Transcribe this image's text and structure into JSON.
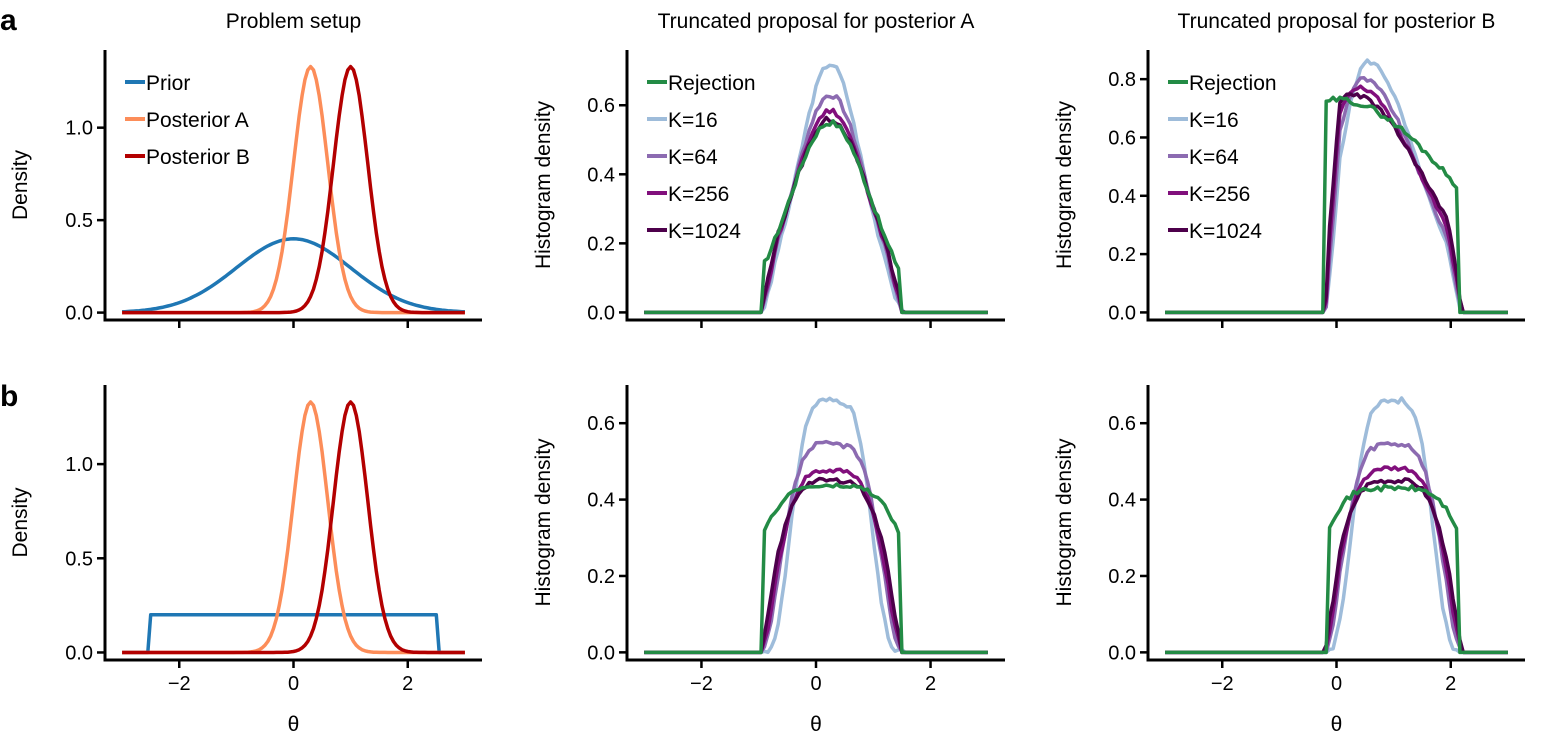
{
  "panel_letters": [
    "a",
    "b"
  ],
  "colors": {
    "prior": "#1f77b4",
    "posterior_a": "#fc8d59",
    "posterior_b": "#b30000",
    "rejection": "#238b45",
    "k16": "#9ebcda",
    "k64": "#8c6bb1",
    "k256": "#810f7c",
    "k1024": "#4d004b"
  },
  "chart_data": [
    {
      "id": "a-setup",
      "type": "line",
      "title": "Problem setup",
      "xlabel": "",
      "ylabel": "Density",
      "xlim": [
        -3.3,
        3.3
      ],
      "ylim": [
        -0.04,
        1.42
      ],
      "xticks": [
        -2,
        0,
        2
      ],
      "yticks": [
        0.0,
        0.5,
        1.0
      ],
      "show_xticklabels": false,
      "legend_placement": "top-left",
      "series": [
        {
          "name": "Prior",
          "color": "prior",
          "kind": "gauss",
          "mu": 0.0,
          "sigma": 1.0,
          "amp": 0.399,
          "x0": -3,
          "x1": 3
        },
        {
          "name": "Posterior A",
          "color": "posterior_a",
          "kind": "gauss",
          "mu": 0.3,
          "sigma": 0.3,
          "amp": 1.33,
          "x0": -3,
          "x1": 3
        },
        {
          "name": "Posterior B",
          "color": "posterior_b",
          "kind": "gauss",
          "mu": 1.0,
          "sigma": 0.3,
          "amp": 1.33,
          "x0": -3,
          "x1": 3
        }
      ]
    },
    {
      "id": "a-postA",
      "type": "line",
      "title": "Truncated proposal for posterior A",
      "xlabel": "",
      "ylabel": "Histogram density",
      "xlim": [
        -3.3,
        3.3
      ],
      "ylim": [
        -0.022,
        0.76
      ],
      "xticks": [
        -2,
        0,
        2
      ],
      "yticks": [
        0.0,
        0.2,
        0.4,
        0.6
      ],
      "show_xticklabels": false,
      "legend_placement": "top-left",
      "series": [
        {
          "name": "K=16",
          "color": "k16",
          "kind": "hist",
          "x0": -3,
          "x1": 3,
          "a": -0.95,
          "b": 1.5,
          "c": 0.25,
          "width": 0.55,
          "peak": 0.72,
          "edge": 0.12,
          "noise": 0.008,
          "seed": 3
        },
        {
          "name": "K=64",
          "color": "k64",
          "kind": "hist",
          "x0": -3,
          "x1": 3,
          "a": -0.95,
          "b": 1.5,
          "c": 0.25,
          "width": 0.62,
          "peak": 0.63,
          "edge": 0.2,
          "noise": 0.008,
          "seed": 7
        },
        {
          "name": "K=256",
          "color": "k256",
          "kind": "hist",
          "x0": -3,
          "x1": 3,
          "a": -0.95,
          "b": 1.5,
          "c": 0.25,
          "width": 0.65,
          "peak": 0.585,
          "edge": 0.25,
          "noise": 0.008,
          "seed": 11
        },
        {
          "name": "K=1024",
          "color": "k1024",
          "kind": "hist",
          "x0": -3,
          "x1": 3,
          "a": -0.95,
          "b": 1.5,
          "c": 0.25,
          "width": 0.68,
          "peak": 0.56,
          "edge": 0.3,
          "noise": 0.008,
          "seed": 13
        },
        {
          "name": "Rejection",
          "color": "rejection",
          "kind": "hist",
          "x0": -3,
          "x1": 3,
          "a": -0.9,
          "b": 1.45,
          "c": 0.25,
          "width": 0.7,
          "peak": 0.55,
          "edge": 0.38,
          "noise": 0.008,
          "seed": 17,
          "hard": true
        }
      ],
      "legend_order": [
        "Rejection",
        "K=16",
        "K=64",
        "K=256",
        "K=1024"
      ]
    },
    {
      "id": "a-postB",
      "type": "line",
      "title": "Truncated proposal for posterior B",
      "xlabel": "",
      "ylabel": "Histogram density",
      "xlim": [
        -3.3,
        3.3
      ],
      "ylim": [
        -0.026,
        0.9
      ],
      "xticks": [
        -2,
        0,
        2
      ],
      "yticks": [
        0.0,
        0.2,
        0.4,
        0.6,
        0.8
      ],
      "show_xticklabels": false,
      "legend_placement": "top-left",
      "series": [
        {
          "name": "K=16",
          "color": "k16",
          "kind": "hist",
          "x0": -3,
          "x1": 3,
          "a": -0.2,
          "b": 2.2,
          "c": 0.55,
          "width": 0.5,
          "peak": 0.86,
          "edge": 0.05,
          "noise": 0.008,
          "seed": 5,
          "skew": 0.7
        },
        {
          "name": "K=64",
          "color": "k64",
          "kind": "hist",
          "x0": -3,
          "x1": 3,
          "a": -0.2,
          "b": 2.2,
          "c": 0.45,
          "width": 0.55,
          "peak": 0.8,
          "edge": 0.1,
          "noise": 0.008,
          "seed": 9,
          "skew": 0.8
        },
        {
          "name": "K=256",
          "color": "k256",
          "kind": "hist",
          "x0": -3,
          "x1": 3,
          "a": -0.2,
          "b": 2.2,
          "c": 0.35,
          "width": 0.6,
          "peak": 0.77,
          "edge": 0.15,
          "noise": 0.008,
          "seed": 19,
          "skew": 0.9
        },
        {
          "name": "K=1024",
          "color": "k1024",
          "kind": "hist",
          "x0": -3,
          "x1": 3,
          "a": -0.2,
          "b": 2.2,
          "c": 0.25,
          "width": 0.65,
          "peak": 0.75,
          "edge": 0.2,
          "noise": 0.008,
          "seed": 23,
          "skew": 1.0
        },
        {
          "name": "Rejection",
          "color": "rejection",
          "kind": "hist",
          "x0": -3,
          "x1": 3,
          "a": -0.2,
          "b": 2.15,
          "c": 0.0,
          "width": 0.9,
          "peak": 0.73,
          "edge": 0.6,
          "noise": 0.01,
          "seed": 29,
          "hard": true,
          "skew": 1.3
        }
      ],
      "legend_order": [
        "Rejection",
        "K=16",
        "K=64",
        "K=256",
        "K=1024"
      ]
    },
    {
      "id": "b-setup",
      "type": "line",
      "title": "",
      "xlabel": "θ",
      "ylabel": "Density",
      "xlim": [
        -3.3,
        3.3
      ],
      "ylim": [
        -0.04,
        1.42
      ],
      "xticks": [
        -2,
        0,
        2
      ],
      "yticks": [
        0.0,
        0.5,
        1.0
      ],
      "show_xticklabels": true,
      "series": [
        {
          "name": "Prior",
          "color": "prior",
          "kind": "box",
          "lo": -2.5,
          "hi": 2.5,
          "height": 0.2,
          "x0": -3,
          "x1": 3
        },
        {
          "name": "Posterior A",
          "color": "posterior_a",
          "kind": "gauss",
          "mu": 0.3,
          "sigma": 0.3,
          "amp": 1.33,
          "x0": -3,
          "x1": 3
        },
        {
          "name": "Posterior B",
          "color": "posterior_b",
          "kind": "gauss",
          "mu": 1.0,
          "sigma": 0.3,
          "amp": 1.33,
          "x0": -3,
          "x1": 3
        }
      ]
    },
    {
      "id": "b-postA",
      "type": "line",
      "title": "",
      "xlabel": "θ",
      "ylabel": "Histogram density",
      "xlim": [
        -3.3,
        3.3
      ],
      "ylim": [
        -0.02,
        0.7
      ],
      "xticks": [
        -2,
        0,
        2
      ],
      "yticks": [
        0.0,
        0.2,
        0.4,
        0.6
      ],
      "show_xticklabels": true,
      "series": [
        {
          "name": "K=16",
          "color": "k16",
          "kind": "hist",
          "x0": -3,
          "x1": 3,
          "a": -0.95,
          "b": 1.5,
          "c": 0.27,
          "width": 0.5,
          "peak": 0.66,
          "edge": 0.12,
          "noise": 0.008,
          "seed": 31,
          "flat": true
        },
        {
          "name": "K=64",
          "color": "k64",
          "kind": "hist",
          "x0": -3,
          "x1": 3,
          "a": -0.95,
          "b": 1.5,
          "c": 0.27,
          "width": 0.6,
          "peak": 0.545,
          "edge": 0.2,
          "noise": 0.008,
          "seed": 37,
          "flat": true
        },
        {
          "name": "K=256",
          "color": "k256",
          "kind": "hist",
          "x0": -3,
          "x1": 3,
          "a": -0.95,
          "b": 1.5,
          "c": 0.27,
          "width": 0.65,
          "peak": 0.475,
          "edge": 0.28,
          "noise": 0.006,
          "seed": 41,
          "flat": true
        },
        {
          "name": "K=1024",
          "color": "k1024",
          "kind": "hist",
          "x0": -3,
          "x1": 3,
          "a": -0.95,
          "b": 1.5,
          "c": 0.27,
          "width": 0.7,
          "peak": 0.45,
          "edge": 0.36,
          "noise": 0.006,
          "seed": 43,
          "flat": true
        },
        {
          "name": "Rejection",
          "color": "rejection",
          "kind": "hist",
          "x0": -3,
          "x1": 3,
          "a": -0.9,
          "b": 1.45,
          "c": 0.27,
          "width": 1.0,
          "peak": 0.435,
          "edge": 0.42,
          "noise": 0.006,
          "seed": 47,
          "hard": true,
          "flat": true
        }
      ]
    },
    {
      "id": "b-postB",
      "type": "line",
      "title": "",
      "xlabel": "θ",
      "ylabel": "Histogram density",
      "xlim": [
        -3.3,
        3.3
      ],
      "ylim": [
        -0.02,
        0.7
      ],
      "xticks": [
        -2,
        0,
        2
      ],
      "yticks": [
        0.0,
        0.2,
        0.4,
        0.6
      ],
      "show_xticklabels": true,
      "series": [
        {
          "name": "K=16",
          "color": "k16",
          "kind": "hist",
          "x0": -3,
          "x1": 3,
          "a": -0.2,
          "b": 2.2,
          "c": 0.98,
          "width": 0.5,
          "peak": 0.66,
          "edge": 0.12,
          "noise": 0.008,
          "seed": 53,
          "flat": true
        },
        {
          "name": "K=64",
          "color": "k64",
          "kind": "hist",
          "x0": -3,
          "x1": 3,
          "a": -0.2,
          "b": 2.2,
          "c": 0.98,
          "width": 0.6,
          "peak": 0.545,
          "edge": 0.2,
          "noise": 0.008,
          "seed": 59,
          "flat": true
        },
        {
          "name": "K=256",
          "color": "k256",
          "kind": "hist",
          "x0": -3,
          "x1": 3,
          "a": -0.2,
          "b": 2.2,
          "c": 0.98,
          "width": 0.65,
          "peak": 0.48,
          "edge": 0.28,
          "noise": 0.006,
          "seed": 61,
          "flat": true
        },
        {
          "name": "K=1024",
          "color": "k1024",
          "kind": "hist",
          "x0": -3,
          "x1": 3,
          "a": -0.2,
          "b": 2.2,
          "c": 0.98,
          "width": 0.7,
          "peak": 0.45,
          "edge": 0.36,
          "noise": 0.006,
          "seed": 67,
          "flat": true
        },
        {
          "name": "Rejection",
          "color": "rejection",
          "kind": "hist",
          "x0": -3,
          "x1": 3,
          "a": -0.15,
          "b": 2.15,
          "c": 0.98,
          "width": 1.0,
          "peak": 0.43,
          "edge": 0.4,
          "noise": 0.007,
          "seed": 71,
          "hard": true,
          "flat": true
        }
      ]
    }
  ]
}
